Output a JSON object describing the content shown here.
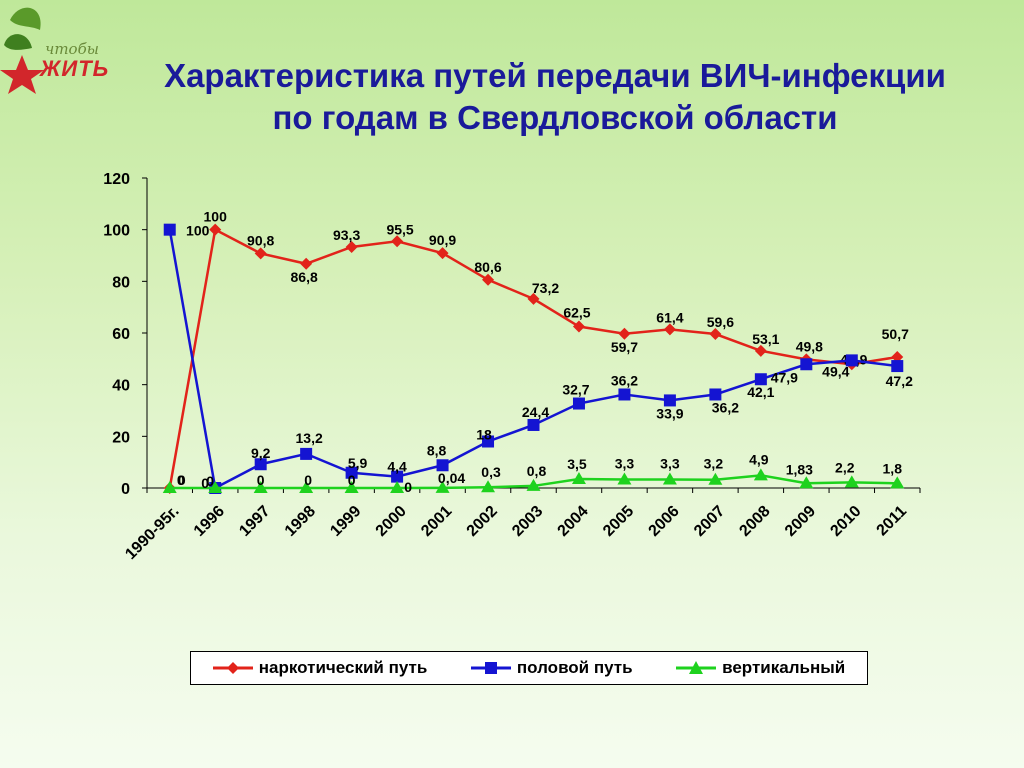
{
  "title": {
    "line1": "Характеристика путей передачи ВИЧ-инфекции",
    "line2": "по годам в Свердловской области"
  },
  "logo": {
    "small_text": "чтобы",
    "big_text": "ЖИТЬ"
  },
  "colors": {
    "red": "#e2231a",
    "blue": "#1414d2",
    "green": "#1ed21e",
    "title": "#1a1a9a"
  },
  "chart_data": {
    "type": "line",
    "categories": [
      "1990-95г.",
      "1996",
      "1997",
      "1998",
      "1999",
      "2000",
      "2001",
      "2002",
      "2003",
      "2004",
      "2005",
      "2006",
      "2007",
      "2008",
      "2009",
      "2010",
      "2011"
    ],
    "ylim": [
      0,
      120
    ],
    "yticks": [
      "0",
      "20",
      "40",
      "60",
      "80",
      "100",
      "120"
    ],
    "legend_position": "bottom",
    "grid": false,
    "series": [
      {
        "name": "наркотический путь",
        "color": "#e2231a",
        "marker": "diamond",
        "values": [
          0,
          100,
          90.8,
          86.8,
          93.3,
          95.5,
          90.9,
          80.6,
          73.2,
          62.5,
          59.7,
          61.4,
          59.6,
          53.1,
          49.8,
          47.9,
          50.7
        ],
        "labels": [
          "0",
          "100",
          "90,8",
          "86,8",
          "93,3",
          "95,5",
          "90,9",
          "80,6",
          "73,2",
          "62,5",
          "59,7",
          "61,4",
          "59,6",
          "53,1",
          "49,8",
          "47,9",
          "50,7"
        ]
      },
      {
        "name": "половой путь",
        "color": "#1414d2",
        "marker": "square",
        "values": [
          100,
          0,
          9.2,
          13.2,
          5.9,
          4.4,
          8.8,
          18,
          24.4,
          32.7,
          36.2,
          33.9,
          36.2,
          42.1,
          47.9,
          49.4,
          47.2
        ],
        "labels": [
          "100",
          "0",
          "9,2",
          "13,2",
          "5,9",
          "4,4",
          "8,8",
          "18",
          "24,4",
          "32,7",
          "36,2",
          "33,9",
          "36,2",
          "42,1",
          "47,9",
          "49,4",
          "47,2"
        ]
      },
      {
        "name": "вертикальный",
        "color": "#1ed21e",
        "marker": "triangle",
        "values": [
          0,
          0,
          0,
          0,
          0,
          0,
          0.04,
          0.3,
          0.8,
          3.5,
          3.3,
          3.3,
          3.2,
          4.9,
          1.83,
          2.2,
          1.8
        ],
        "labels": [
          "0",
          "0",
          "0",
          "0",
          "0",
          "0",
          "0,04",
          "0,3",
          "0,8",
          "3,5",
          "3,3",
          "3,3",
          "3,2",
          "4,9",
          "1,83",
          "2,2",
          "1,8"
        ]
      }
    ]
  }
}
